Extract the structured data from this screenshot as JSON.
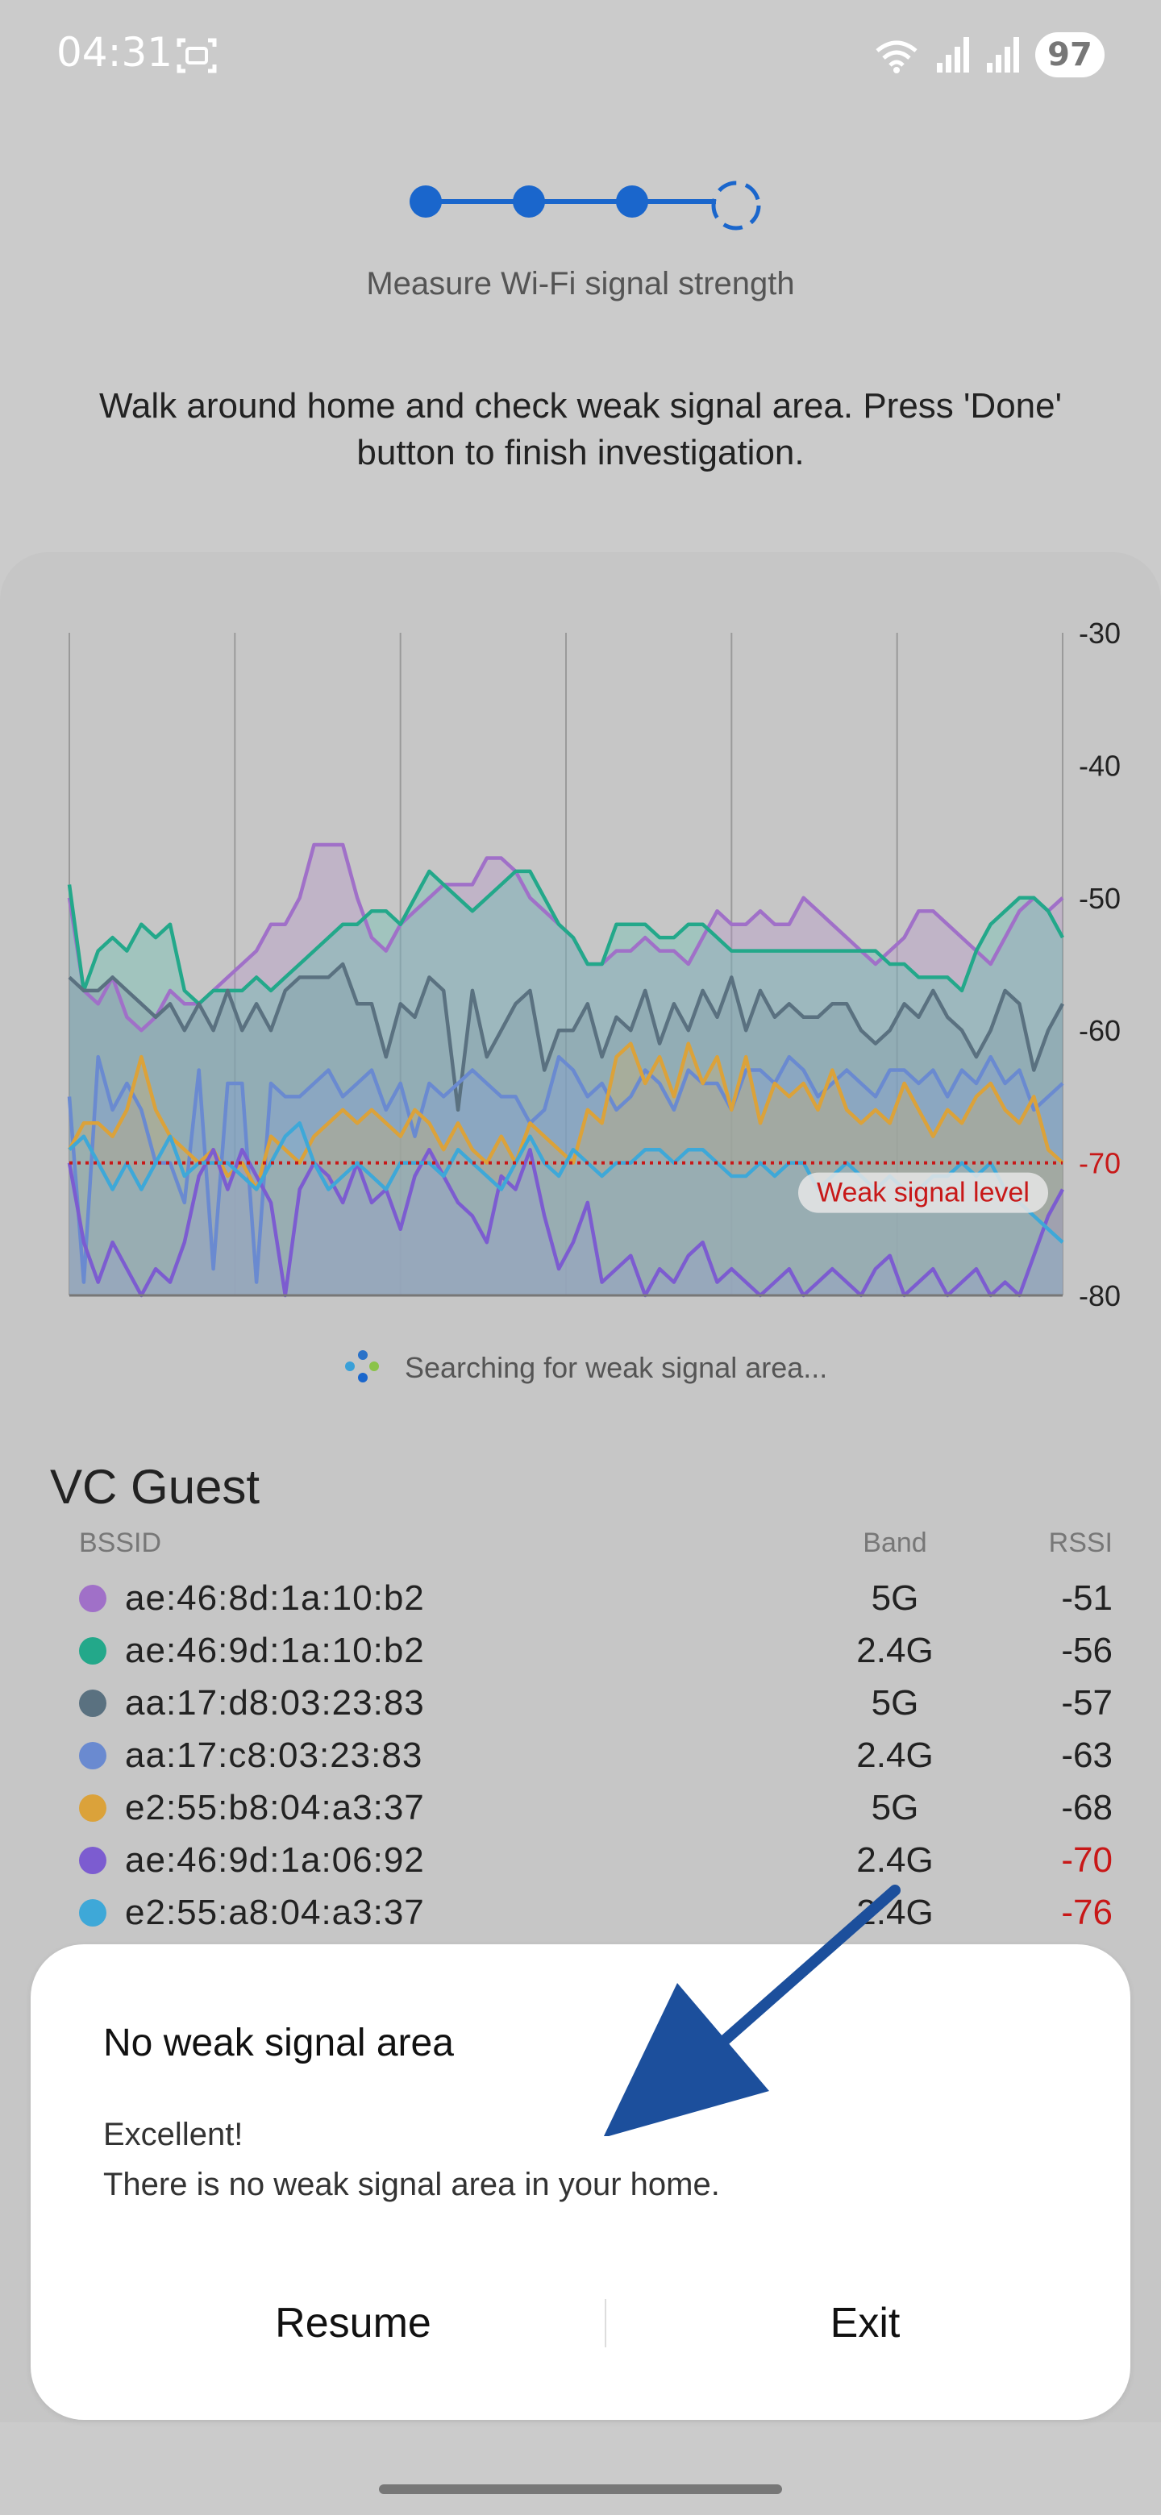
{
  "status_bar": {
    "time": "04:31",
    "battery": "97"
  },
  "stepper": {
    "title": "Measure Wi-Fi signal strength"
  },
  "instruction": "Walk around home and check weak signal area. Press 'Done' button to finish investigation.",
  "chart_data": {
    "type": "area",
    "ylim": [
      -80,
      -30
    ],
    "y_ticks": [
      "-30",
      "-40",
      "-50",
      "-60",
      "-70",
      "-80"
    ],
    "threshold": {
      "value": -70,
      "label": "Weak signal level"
    },
    "grid_vertical": true,
    "series": [
      {
        "color": "#a070c8",
        "fill": "#b593c8",
        "values": [
          -50,
          -57,
          -58,
          -56,
          -59,
          -60,
          -59,
          -57,
          -58,
          -58,
          -57,
          -56,
          -55,
          -54,
          -52,
          -52,
          -50,
          -46,
          -46,
          -46,
          -50,
          -53,
          -54,
          -52,
          -51,
          -50,
          -49,
          -49,
          -49,
          -47,
          -47,
          -48,
          -50,
          -51,
          -52,
          -53,
          -55,
          -55,
          -54,
          -54,
          -53,
          -54,
          -54,
          -55,
          -53,
          -51,
          -52,
          -52,
          -51,
          -52,
          -52,
          -50,
          -51,
          -52,
          -53,
          -54,
          -55,
          -54,
          -53,
          -51,
          -51,
          -52,
          -53,
          -54,
          -55,
          -53,
          -51,
          -50,
          -51,
          -50
        ]
      },
      {
        "color": "#23a88a",
        "fill": "#5dbfae",
        "values": [
          -49,
          -57,
          -54,
          -53,
          -54,
          -52,
          -53,
          -52,
          -57,
          -58,
          -57,
          -57,
          -57,
          -56,
          -57,
          -56,
          -55,
          -54,
          -53,
          -52,
          -52,
          -51,
          -51,
          -52,
          -50,
          -48,
          -49,
          -50,
          -51,
          -50,
          -49,
          -48,
          -48,
          -50,
          -52,
          -53,
          -55,
          -55,
          -52,
          -52,
          -52,
          -53,
          -53,
          -52,
          -52,
          -53,
          -54,
          -54,
          -54,
          -54,
          -54,
          -54,
          -54,
          -54,
          -54,
          -54,
          -54,
          -55,
          -55,
          -56,
          -56,
          -56,
          -57,
          -54,
          -52,
          -51,
          -50,
          -50,
          -51,
          -53
        ]
      },
      {
        "color": "#5a7180",
        "fill": "#7f97a6",
        "values": [
          -56,
          -57,
          -57,
          -56,
          -57,
          -58,
          -59,
          -58,
          -60,
          -58,
          -60,
          -57,
          -60,
          -58,
          -60,
          -57,
          -56,
          -56,
          -56,
          -55,
          -58,
          -58,
          -62,
          -58,
          -59,
          -56,
          -57,
          -66,
          -57,
          -62,
          -60,
          -58,
          -57,
          -63,
          -60,
          -60,
          -58,
          -62,
          -59,
          -60,
          -57,
          -61,
          -58,
          -60,
          -57,
          -59,
          -56,
          -60,
          -57,
          -59,
          -58,
          -59,
          -59,
          -58,
          -58,
          -60,
          -61,
          -60,
          -58,
          -59,
          -57,
          -59,
          -60,
          -62,
          -60,
          -57,
          -58,
          -63,
          -60,
          -58
        ]
      },
      {
        "color": "#6a8ad0",
        "fill": "#7e9fd8",
        "values": [
          -65,
          -79,
          -62,
          -66,
          -64,
          -66,
          -70,
          -70,
          -73,
          -63,
          -78,
          -64,
          -64,
          -79,
          -64,
          -65,
          -65,
          -64,
          -63,
          -65,
          -64,
          -63,
          -66,
          -64,
          -68,
          -64,
          -65,
          -64,
          -63,
          -64,
          -65,
          -65,
          -67,
          -66,
          -62,
          -63,
          -65,
          -64,
          -66,
          -65,
          -63,
          -64,
          -66,
          -63,
          -64,
          -64,
          -66,
          -63,
          -63,
          -64,
          -62,
          -63,
          -65,
          -64,
          -63,
          -64,
          -65,
          -63,
          -63,
          -64,
          -63,
          -65,
          -63,
          -64,
          -62,
          -64,
          -63,
          -66,
          -65,
          -64
        ]
      },
      {
        "color": "#dba23a",
        "fill": "#cfae6a",
        "values": [
          -69,
          -67,
          -67,
          -68,
          -66,
          -62,
          -66,
          -68,
          -69,
          -70,
          -69,
          -71,
          -70,
          -72,
          -68,
          -69,
          -70,
          -68,
          -67,
          -66,
          -67,
          -66,
          -67,
          -68,
          -66,
          -67,
          -69,
          -67,
          -69,
          -70,
          -68,
          -70,
          -67,
          -68,
          -69,
          -70,
          -66,
          -67,
          -62,
          -61,
          -64,
          -62,
          -65,
          -61,
          -64,
          -62,
          -66,
          -62,
          -67,
          -64,
          -65,
          -64,
          -66,
          -63,
          -66,
          -67,
          -66,
          -67,
          -64,
          -66,
          -68,
          -66,
          -67,
          -65,
          -64,
          -66,
          -67,
          -65,
          -69,
          -70
        ]
      },
      {
        "color": "#7c5cd0",
        "fill": "#9e92c8",
        "values": [
          -70,
          -76,
          -79,
          -76,
          -78,
          -80,
          -78,
          -79,
          -76,
          -71,
          -69,
          -72,
          -69,
          -71,
          -73,
          -80,
          -72,
          -70,
          -71,
          -73,
          -70,
          -73,
          -72,
          -75,
          -71,
          -69,
          -71,
          -73,
          -74,
          -76,
          -71,
          -72,
          -69,
          -74,
          -78,
          -76,
          -73,
          -79,
          -78,
          -77,
          -80,
          -78,
          -79,
          -77,
          -76,
          -79,
          -78,
          -79,
          -80,
          -79,
          -78,
          -80,
          -79,
          -78,
          -79,
          -80,
          -78,
          -77,
          -80,
          -79,
          -78,
          -80,
          -79,
          -78,
          -80,
          -79,
          -80,
          -77,
          -74,
          -72
        ]
      },
      {
        "color": "#3ea8d8",
        "fill": "#87b5d0",
        "values": [
          -69,
          -68,
          -70,
          -72,
          -70,
          -72,
          -70,
          -68,
          -71,
          -70,
          -70,
          -70,
          -71,
          -72,
          -70,
          -68,
          -67,
          -70,
          -72,
          -71,
          -70,
          -71,
          -72,
          -70,
          -70,
          -70,
          -71,
          -69,
          -70,
          -71,
          -72,
          -70,
          -68,
          -70,
          -71,
          -69,
          -70,
          -71,
          -70,
          -70,
          -69,
          -69,
          -70,
          -69,
          -69,
          -70,
          -71,
          -71,
          -70,
          -71,
          -70,
          -70,
          -72,
          -71,
          -70,
          -71,
          -72,
          -71,
          -72,
          -72,
          -71,
          -71,
          -70,
          -71,
          -70,
          -72,
          -73,
          -74,
          -75,
          -76
        ]
      }
    ]
  },
  "searching_text": "Searching for weak signal area...",
  "network": {
    "name": "VC Guest",
    "headers": {
      "bssid": "BSSID",
      "band": "Band",
      "rssi": "RSSI"
    },
    "rows": [
      {
        "bssid": "ae:46:8d:1a:10:b2",
        "band": "5G",
        "rssi": "-51",
        "color": "#a070c8",
        "weak": false
      },
      {
        "bssid": "ae:46:9d:1a:10:b2",
        "band": "2.4G",
        "rssi": "-56",
        "color": "#23a88a",
        "weak": false
      },
      {
        "bssid": "aa:17:d8:03:23:83",
        "band": "5G",
        "rssi": "-57",
        "color": "#5a7180",
        "weak": false
      },
      {
        "bssid": "aa:17:c8:03:23:83",
        "band": "2.4G",
        "rssi": "-63",
        "color": "#6a8ad0",
        "weak": false
      },
      {
        "bssid": "e2:55:b8:04:a3:37",
        "band": "5G",
        "rssi": "-68",
        "color": "#dba23a",
        "weak": false
      },
      {
        "bssid": "ae:46:9d:1a:06:92",
        "band": "2.4G",
        "rssi": "-70",
        "color": "#7c5cd0",
        "weak": true
      },
      {
        "bssid": "e2:55:a8:04:a3:37",
        "band": "2.4G",
        "rssi": "-76",
        "color": "#3ea8d8",
        "weak": true
      }
    ]
  },
  "dialog": {
    "title": "No weak signal area",
    "line1": "Excellent!",
    "line2": "There is no weak signal area in your home.",
    "resume_label": "Resume",
    "exit_label": "Exit"
  },
  "colors": {
    "accent": "#1a66cc",
    "weak": "#c81818",
    "arrow": "#1c4f9c"
  }
}
